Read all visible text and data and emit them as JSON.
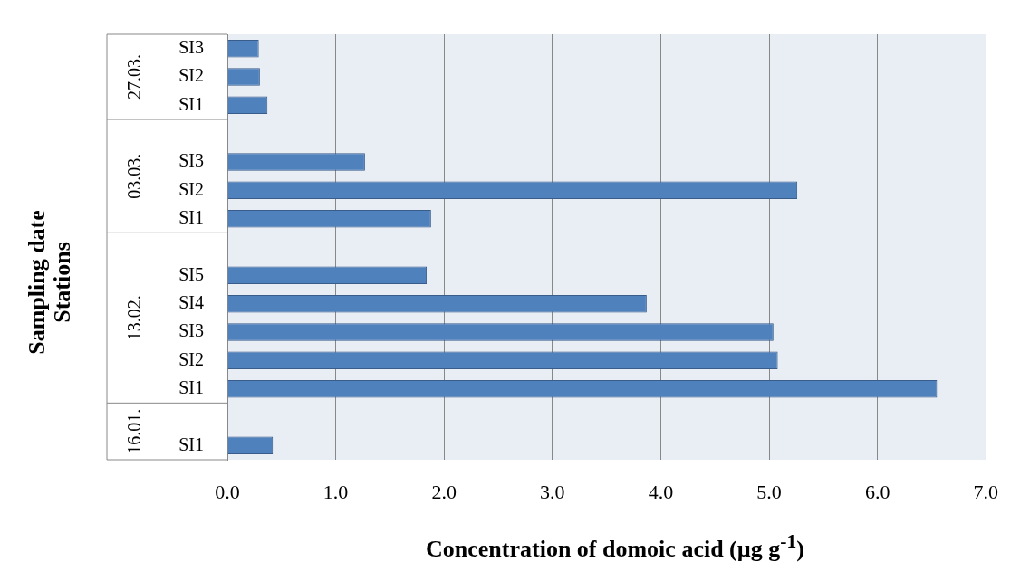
{
  "chart_data": {
    "type": "bar",
    "orientation": "horizontal",
    "xlabel": "Concentration of domoic acid (µg g$^{-1}$)",
    "ylabel": "Sampling date\nStations",
    "categories": [
      "SI3",
      "SI2",
      "SI1",
      null,
      "SI3",
      "SI2",
      "SI1",
      null,
      "SI5",
      "SI4",
      "SI3",
      "SI2",
      "SI1",
      null,
      "SI1"
    ],
    "values": [
      0.29,
      0.3,
      0.37,
      null,
      1.27,
      5.26,
      1.88,
      null,
      1.84,
      3.87,
      5.04,
      5.08,
      6.55,
      null,
      0.42
    ],
    "color": "#4f81bd",
    "annotations": [
      "27.03.",
      "03.03.",
      "13.02.",
      "16.01."
    ],
    "xlim": [
      0,
      7
    ],
    "xticks": [
      {
        "value": 0,
        "label": "0.0"
      },
      {
        "value": 1,
        "label": "1.0"
      },
      {
        "value": 2,
        "label": "2.0"
      },
      {
        "value": 3,
        "label": "3.0"
      },
      {
        "value": 4,
        "label": "4.0"
      },
      {
        "value": 5,
        "label": "5.0"
      },
      {
        "value": 6,
        "label": "6.0"
      },
      {
        "value": 7,
        "label": "7.0"
      }
    ],
    "grid": "x",
    "legend": false
  }
}
